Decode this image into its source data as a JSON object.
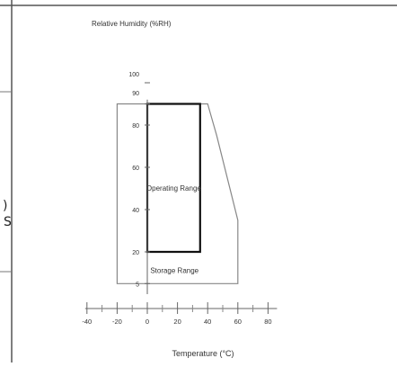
{
  "chart_data": {
    "type": "area",
    "ylabel": "Relative Humidity (%RH)",
    "xlabel": "Temperature (°C)",
    "x_ticks": [
      -40,
      -20,
      0,
      20,
      40,
      60,
      80
    ],
    "y_ticks": [
      5,
      20,
      40,
      60,
      80,
      90,
      100
    ],
    "xlim": [
      -40,
      80
    ],
    "ylim": [
      0,
      100
    ],
    "regions": [
      {
        "name": "Operating Range",
        "points": [
          [
            0,
            20
          ],
          [
            0,
            90
          ],
          [
            35,
            90
          ],
          [
            35,
            20
          ]
        ]
      },
      {
        "name": "Storage Range",
        "points": [
          [
            -20,
            5
          ],
          [
            -20,
            90
          ],
          [
            40,
            90
          ],
          [
            46,
            75
          ],
          [
            60,
            35
          ],
          [
            60,
            5
          ]
        ]
      }
    ],
    "grid": false
  },
  "left_panel": {
    "fragment_1": ")",
    "fragment_2": "S"
  }
}
